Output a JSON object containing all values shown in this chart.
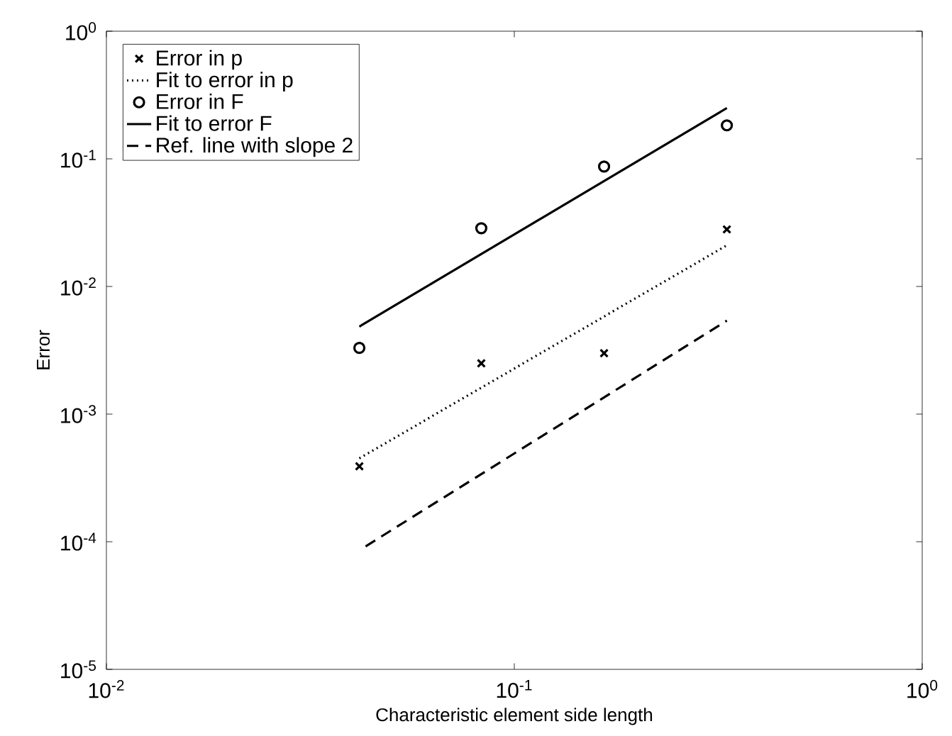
{
  "chart_data": {
    "type": "line",
    "xlabel": "Characteristic element side length",
    "ylabel": "Error",
    "log": "xy",
    "xlim": [
      0.01,
      1
    ],
    "ylim": [
      1e-05,
      1
    ],
    "xticks": [
      {
        "value": 0.01,
        "label": "10$^{-2}$"
      },
      {
        "value": 0.1,
        "label": "10$^{-1}$"
      },
      {
        "value": 1,
        "label": "10$^{0}$"
      }
    ],
    "yticks": [
      {
        "value": 1e-05,
        "label": "10$^{-5}$"
      },
      {
        "value": 0.0001,
        "label": "10$^{-4}$"
      },
      {
        "value": 0.001,
        "label": "10$^{-3}$"
      },
      {
        "value": 0.01,
        "label": "10$^{-2}$"
      },
      {
        "value": 0.1,
        "label": "10$^{-1}$"
      },
      {
        "value": 1,
        "label": "10$^{0}$"
      }
    ],
    "legend": "top left",
    "grid": false,
    "series": [
      {
        "name": "Error in p",
        "type": "scatter",
        "marker": "cross",
        "color": "#000000",
        "x": [
          0.0417,
          0.083,
          0.166,
          0.332
        ],
        "values": [
          0.00039,
          0.0025,
          0.003,
          0.028
        ]
      },
      {
        "name": "Fit to error in p",
        "line_style": "dotted",
        "color": "#000000",
        "x": [
          0.0417,
          0.332
        ],
        "values": [
          0.00045,
          0.021
        ]
      },
      {
        "name": "Error in F",
        "type": "scatter",
        "marker": "circle",
        "color": "#000000",
        "x": [
          0.0417,
          0.083,
          0.166,
          0.332
        ],
        "values": [
          0.0033,
          0.0286,
          0.087,
          0.183
        ]
      },
      {
        "name": "Fit to error F",
        "line_style": "solid",
        "color": "#000000",
        "x": [
          0.0417,
          0.332
        ],
        "values": [
          0.00485,
          0.25
        ]
      },
      {
        "name": "Ref. line with slope 2",
        "line_style": "dashed",
        "color": "#000000",
        "x": [
          0.0432,
          0.332
        ],
        "values": [
          9.2e-05,
          0.0054
        ]
      }
    ]
  }
}
